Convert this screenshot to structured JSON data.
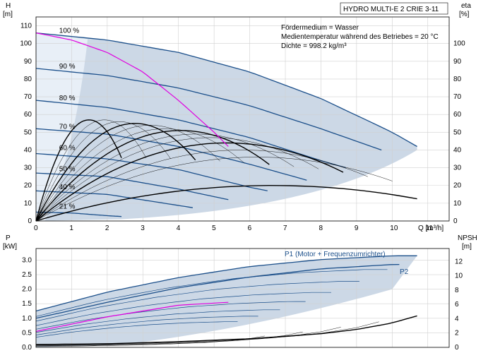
{
  "chart_data": {
    "type": "line",
    "title": "HYDRO MULTI-E 2 CRIE 3-11",
    "info": [
      "Fördermedium = Wasser",
      "Medientemperatur während des Betriebes = 20 °C",
      "Dichte = 998.2 kg/m³"
    ],
    "x_unit_label": "Q [m³/h]",
    "xlim": [
      0,
      11.6
    ],
    "x_ticks": [
      "0",
      "1",
      "2",
      "3",
      "4",
      "5",
      "6",
      "7",
      "8",
      "9",
      "10",
      "11"
    ],
    "top": {
      "ylabel_left": "H",
      "ylabel_left_unit": "[m]",
      "ylabel_right": "eta",
      "ylabel_right_unit": "[%]",
      "ylim": [
        0,
        115
      ],
      "left_ticks": [
        "0",
        "10",
        "20",
        "30",
        "40",
        "50",
        "60",
        "70",
        "80",
        "90",
        "100",
        "110"
      ],
      "right_ticks": [
        "0",
        "10",
        "20",
        "30",
        "40",
        "50",
        "60",
        "70",
        "80",
        "90",
        "100"
      ],
      "speed_labels": [
        {
          "text": "100 %",
          "q": 0.65,
          "h": 106
        },
        {
          "text": "90 %",
          "q": 0.65,
          "h": 86
        },
        {
          "text": "80 %",
          "q": 0.65,
          "h": 68
        },
        {
          "text": "70 %",
          "q": 0.65,
          "h": 52
        },
        {
          "text": "60 %",
          "q": 0.65,
          "h": 40
        },
        {
          "text": "50 %",
          "q": 0.65,
          "h": 28
        },
        {
          "text": "40 %",
          "q": 0.65,
          "h": 18
        },
        {
          "text": "21 %",
          "q": 0.65,
          "h": 7
        }
      ],
      "head_curves": [
        {
          "speed": "100 %",
          "q": [
            0,
            2,
            4,
            6,
            8,
            10,
            10.7
          ],
          "h": [
            106,
            102,
            95,
            84,
            69,
            50,
            42
          ]
        },
        {
          "speed": "90 %",
          "q": [
            0,
            2,
            4,
            6,
            8,
            9.7
          ],
          "h": [
            86,
            82,
            75,
            65,
            52,
            40
          ]
        },
        {
          "speed": "80 %",
          "q": [
            0,
            2,
            4,
            6,
            8,
            8.7
          ],
          "h": [
            68,
            64,
            57,
            47,
            34,
            30
          ]
        },
        {
          "speed": "70 %",
          "q": [
            0,
            2,
            4,
            6,
            7.6
          ],
          "h": [
            52,
            49,
            42,
            32,
            23
          ]
        },
        {
          "speed": "60 %",
          "q": [
            0,
            2,
            4,
            6,
            6.5
          ],
          "h": [
            38,
            35,
            29,
            19,
            17
          ]
        },
        {
          "speed": "50 %",
          "q": [
            0,
            2,
            4,
            5.4
          ],
          "h": [
            27,
            25,
            18,
            12
          ]
        },
        {
          "speed": "40 %",
          "q": [
            0,
            2,
            4.4
          ],
          "h": [
            17,
            15,
            7.5
          ]
        },
        {
          "speed": "21 %",
          "q": [
            0,
            1,
            2,
            2.4
          ],
          "h": [
            5,
            4.5,
            3,
            2.5
          ]
        }
      ],
      "efficiency_curves_max_percent": [
        57,
        57,
        56,
        55,
        54,
        52,
        51,
        49,
        47,
        44,
        40,
        36,
        20
      ],
      "max_power_curve": {
        "q": [
          0,
          1,
          2,
          3,
          4,
          5,
          5.4
        ],
        "h": [
          106,
          102,
          95,
          84,
          68,
          50,
          42
        ]
      }
    },
    "bottom": {
      "ylabel_left": "P",
      "ylabel_left_unit": "[kW]",
      "ylabel_right": "NPSH",
      "ylabel_right_unit": "[m]",
      "ylim": [
        0,
        3.4
      ],
      "left_ticks": [
        "0.0",
        "0.5",
        "1.0",
        "1.5",
        "2.0",
        "2.5",
        "3.0"
      ],
      "right_ticks": [
        "0",
        "2",
        "4",
        "6",
        "8",
        "10",
        "12"
      ],
      "series": [
        {
          "name": "P1 (Motor + Frequenzumrichter)",
          "q": [
            0,
            2,
            4,
            6,
            8,
            10,
            10.7
          ],
          "p": [
            1.25,
            1.9,
            2.4,
            2.78,
            3.02,
            3.15,
            3.15
          ]
        },
        {
          "name": "P2",
          "q": [
            0,
            2,
            4,
            6,
            8,
            10,
            10.2
          ],
          "p": [
            1.0,
            1.55,
            2.05,
            2.42,
            2.7,
            2.85,
            2.85
          ]
        }
      ],
      "npsh_curve": {
        "q": [
          0,
          2,
          4,
          6,
          8,
          9,
          10,
          10.7
        ],
        "npsh": [
          0.4,
          0.5,
          0.8,
          1.2,
          1.9,
          2.5,
          3.4,
          4.4
        ]
      }
    }
  }
}
